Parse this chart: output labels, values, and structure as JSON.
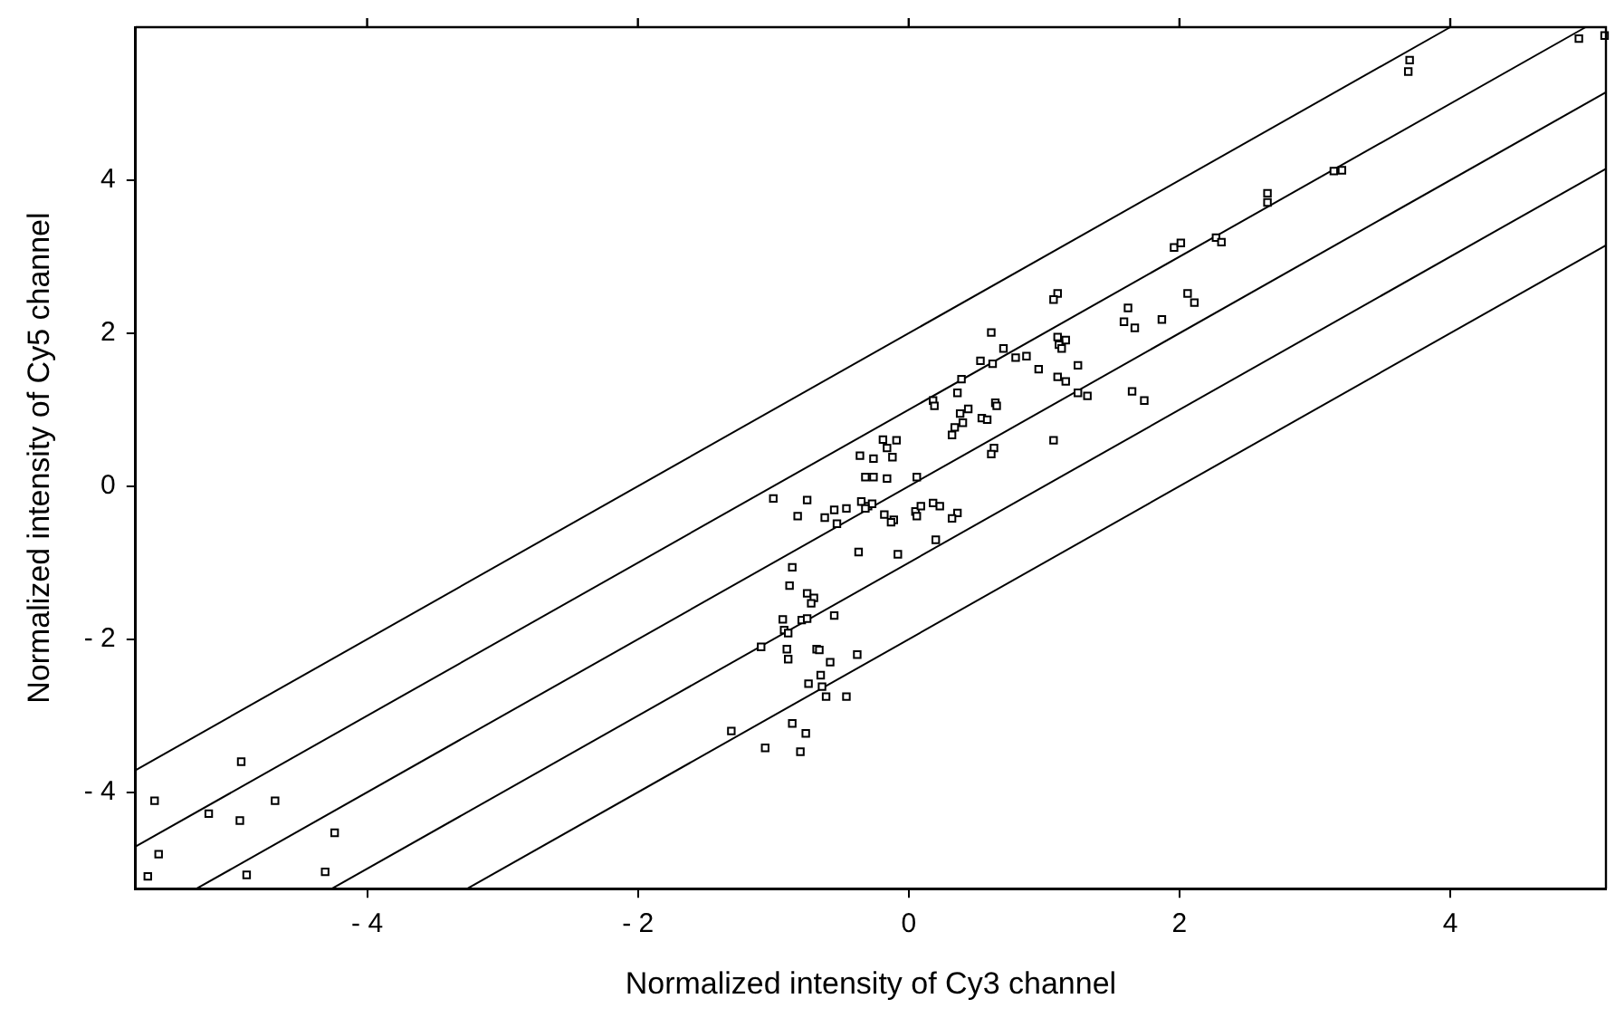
{
  "chart_data": {
    "type": "scatter",
    "xlabel": "Normalized intensity of Cy3 channel",
    "ylabel": "Normalized intensity of Cy5 channel",
    "xlim": [
      -5.71,
      5.15
    ],
    "ylim": [
      -5.26,
      6
    ],
    "xticks": [
      {
        "value": -4,
        "label": "- 4"
      },
      {
        "value": -2,
        "label": "- 2"
      },
      0,
      2,
      4
    ],
    "yticks": [
      {
        "value": -4,
        "label": "- 4"
      },
      {
        "value": -2,
        "label": "- 2"
      },
      0,
      2,
      4
    ],
    "grid": false,
    "legend": false,
    "series": [
      {
        "marker": "square",
        "color": "#000000",
        "x": [
          -5.57,
          -5.54,
          -5.62,
          -4.93,
          -5.17,
          -4.94,
          -4.68,
          -4.89,
          -4.24,
          -4.31,
          1.1,
          1.07,
          1.62,
          1.59,
          1.67,
          1.87,
          2.06,
          0.61,
          1.1,
          1.16,
          1.11,
          1.13,
          0.7,
          0.79,
          0.87,
          0.53,
          0.62,
          0.96,
          1.25,
          1.1,
          1.16,
          0.39,
          1.25,
          1.32,
          1.65,
          1.74,
          0.18,
          0.19,
          0.36,
          0.44,
          0.38,
          0.64,
          0.65,
          0.54,
          0.58,
          0.4,
          0.34,
          0.32,
          1.07,
          -0.19,
          -0.09,
          -0.16,
          -0.12,
          -0.36,
          -0.26,
          0.63,
          0.61,
          -0.32,
          -0.26,
          -0.16,
          0.06,
          -1.0,
          -0.75,
          -0.82,
          -0.55,
          -0.46,
          -0.62,
          -0.53,
          -0.35,
          -0.3,
          -0.27,
          -0.32,
          -0.18,
          -0.11,
          -0.13,
          0.05,
          0.09,
          0.18,
          0.23,
          0.06,
          0.36,
          0.32,
          -0.37,
          -0.08,
          0.2,
          -0.86,
          -0.88,
          -0.75,
          -0.7,
          -0.72,
          -0.55,
          -0.93,
          -0.79,
          -0.75,
          -0.92,
          -0.89,
          -1.09,
          -0.9,
          -0.89,
          -0.68,
          -0.66,
          -0.58,
          -0.38,
          -0.65,
          -0.74,
          -0.64,
          -0.61,
          -0.46,
          -1.31,
          -0.86,
          -0.76,
          -1.06,
          -0.8,
          4.95,
          5.14,
          3.7,
          3.69,
          3.14,
          3.2,
          2.65,
          2.65,
          2.27,
          2.31,
          1.96,
          2.01,
          2.11
        ],
        "values": [
          -4.11,
          -4.81,
          -5.1,
          -3.6,
          -4.28,
          -4.37,
          -4.11,
          -5.08,
          -4.53,
          -5.04,
          2.52,
          2.44,
          2.33,
          2.15,
          2.07,
          2.18,
          2.52,
          2.01,
          1.95,
          1.91,
          1.85,
          1.8,
          1.8,
          1.68,
          1.7,
          1.64,
          1.6,
          1.53,
          1.58,
          1.43,
          1.37,
          1.4,
          1.22,
          1.18,
          1.24,
          1.12,
          1.12,
          1.05,
          1.22,
          1.01,
          0.95,
          1.09,
          1.05,
          0.89,
          0.87,
          0.83,
          0.77,
          0.67,
          0.6,
          0.61,
          0.6,
          0.5,
          0.38,
          0.4,
          0.36,
          0.5,
          0.42,
          0.12,
          0.12,
          0.1,
          0.12,
          -0.16,
          -0.18,
          -0.39,
          -0.31,
          -0.29,
          -0.41,
          -0.49,
          -0.2,
          -0.26,
          -0.23,
          -0.29,
          -0.37,
          -0.44,
          -0.47,
          -0.33,
          -0.26,
          -0.22,
          -0.26,
          -0.39,
          -0.35,
          -0.42,
          -0.86,
          -0.89,
          -0.7,
          -1.06,
          -1.3,
          -1.4,
          -1.46,
          -1.53,
          -1.69,
          -1.74,
          -1.75,
          -1.73,
          -1.88,
          -1.92,
          -2.1,
          -2.13,
          -2.26,
          -2.13,
          -2.14,
          -2.3,
          -2.2,
          -2.47,
          -2.58,
          -2.62,
          -2.75,
          -2.75,
          -3.2,
          -3.1,
          -3.23,
          -3.42,
          -3.47,
          5.85,
          5.89,
          5.57,
          5.42,
          4.12,
          4.13,
          3.83,
          3.71,
          3.25,
          3.19,
          3.12,
          3.18,
          2.4
        ]
      },
      {
        "type": "line",
        "marker": "none",
        "color": "#000000",
        "x": [
          -5.71,
          4
        ],
        "values": [
          -3.71,
          6
        ]
      },
      {
        "type": "line",
        "marker": "none",
        "color": "#000000",
        "x": [
          -5.71,
          5
        ],
        "values": [
          -4.71,
          6
        ]
      },
      {
        "type": "line",
        "marker": "none",
        "color": "#000000",
        "x": [
          -5.26,
          5.15
        ],
        "values": [
          -5.26,
          5.15
        ]
      },
      {
        "type": "line",
        "marker": "none",
        "color": "#000000",
        "x": [
          -4.26,
          5.15
        ],
        "values": [
          -5.26,
          4.15
        ]
      },
      {
        "type": "line",
        "marker": "none",
        "color": "#000000",
        "x": [
          -3.26,
          5.15
        ],
        "values": [
          -5.26,
          3.15
        ]
      }
    ]
  }
}
